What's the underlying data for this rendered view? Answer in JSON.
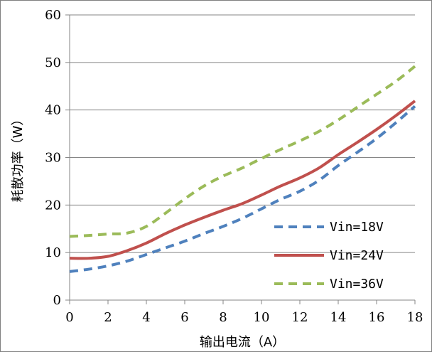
{
  "chart_data": {
    "type": "line",
    "title": "",
    "xlabel": "输出电流（A）",
    "ylabel": "耗散功率（W）",
    "xlim": [
      0,
      18
    ],
    "ylim": [
      0,
      60
    ],
    "xticks": [
      0,
      2,
      4,
      6,
      8,
      10,
      12,
      14,
      16,
      18
    ],
    "yticks": [
      0,
      10,
      20,
      30,
      40,
      50,
      60
    ],
    "grid": "horizontal",
    "legend_position": "bottom-right",
    "series": [
      {
        "name": "Vin=18V",
        "color": "#4f81bd",
        "style": "dashed",
        "x": [
          0,
          1,
          2,
          3,
          4,
          5,
          6,
          7,
          8,
          9,
          10,
          11,
          12,
          13,
          14,
          15,
          16,
          17,
          18
        ],
        "y": [
          6,
          6.5,
          7.2,
          8.2,
          9.6,
          11,
          12.4,
          14,
          15.5,
          17.2,
          19.2,
          21.2,
          22.9,
          25.2,
          28.3,
          31.1,
          34.0,
          37.3,
          40.8
        ]
      },
      {
        "name": "Vin=24V",
        "color": "#c0504d",
        "style": "solid",
        "x": [
          0,
          1,
          2,
          3,
          4,
          5,
          6,
          7,
          8,
          9,
          10,
          11,
          12,
          13,
          14,
          15,
          16,
          17,
          18
        ],
        "y": [
          8.8,
          8.8,
          9.2,
          10.4,
          12.0,
          14.0,
          15.8,
          17.4,
          18.9,
          20.3,
          22.1,
          24.0,
          25.7,
          27.8,
          30.6,
          33.2,
          35.9,
          38.8,
          41.9
        ]
      },
      {
        "name": "Vin=36V",
        "color": "#9bbb59",
        "style": "dashed",
        "x": [
          0,
          1,
          2,
          3,
          4,
          5,
          6,
          7,
          8,
          9,
          10,
          11,
          12,
          13,
          14,
          15,
          16,
          17,
          18
        ],
        "y": [
          13.4,
          13.6,
          13.9,
          14.1,
          15.5,
          18.3,
          21.3,
          24.0,
          26.1,
          27.8,
          29.8,
          31.7,
          33.5,
          35.5,
          37.9,
          40.6,
          43.3,
          46.0,
          49.2
        ]
      }
    ]
  }
}
